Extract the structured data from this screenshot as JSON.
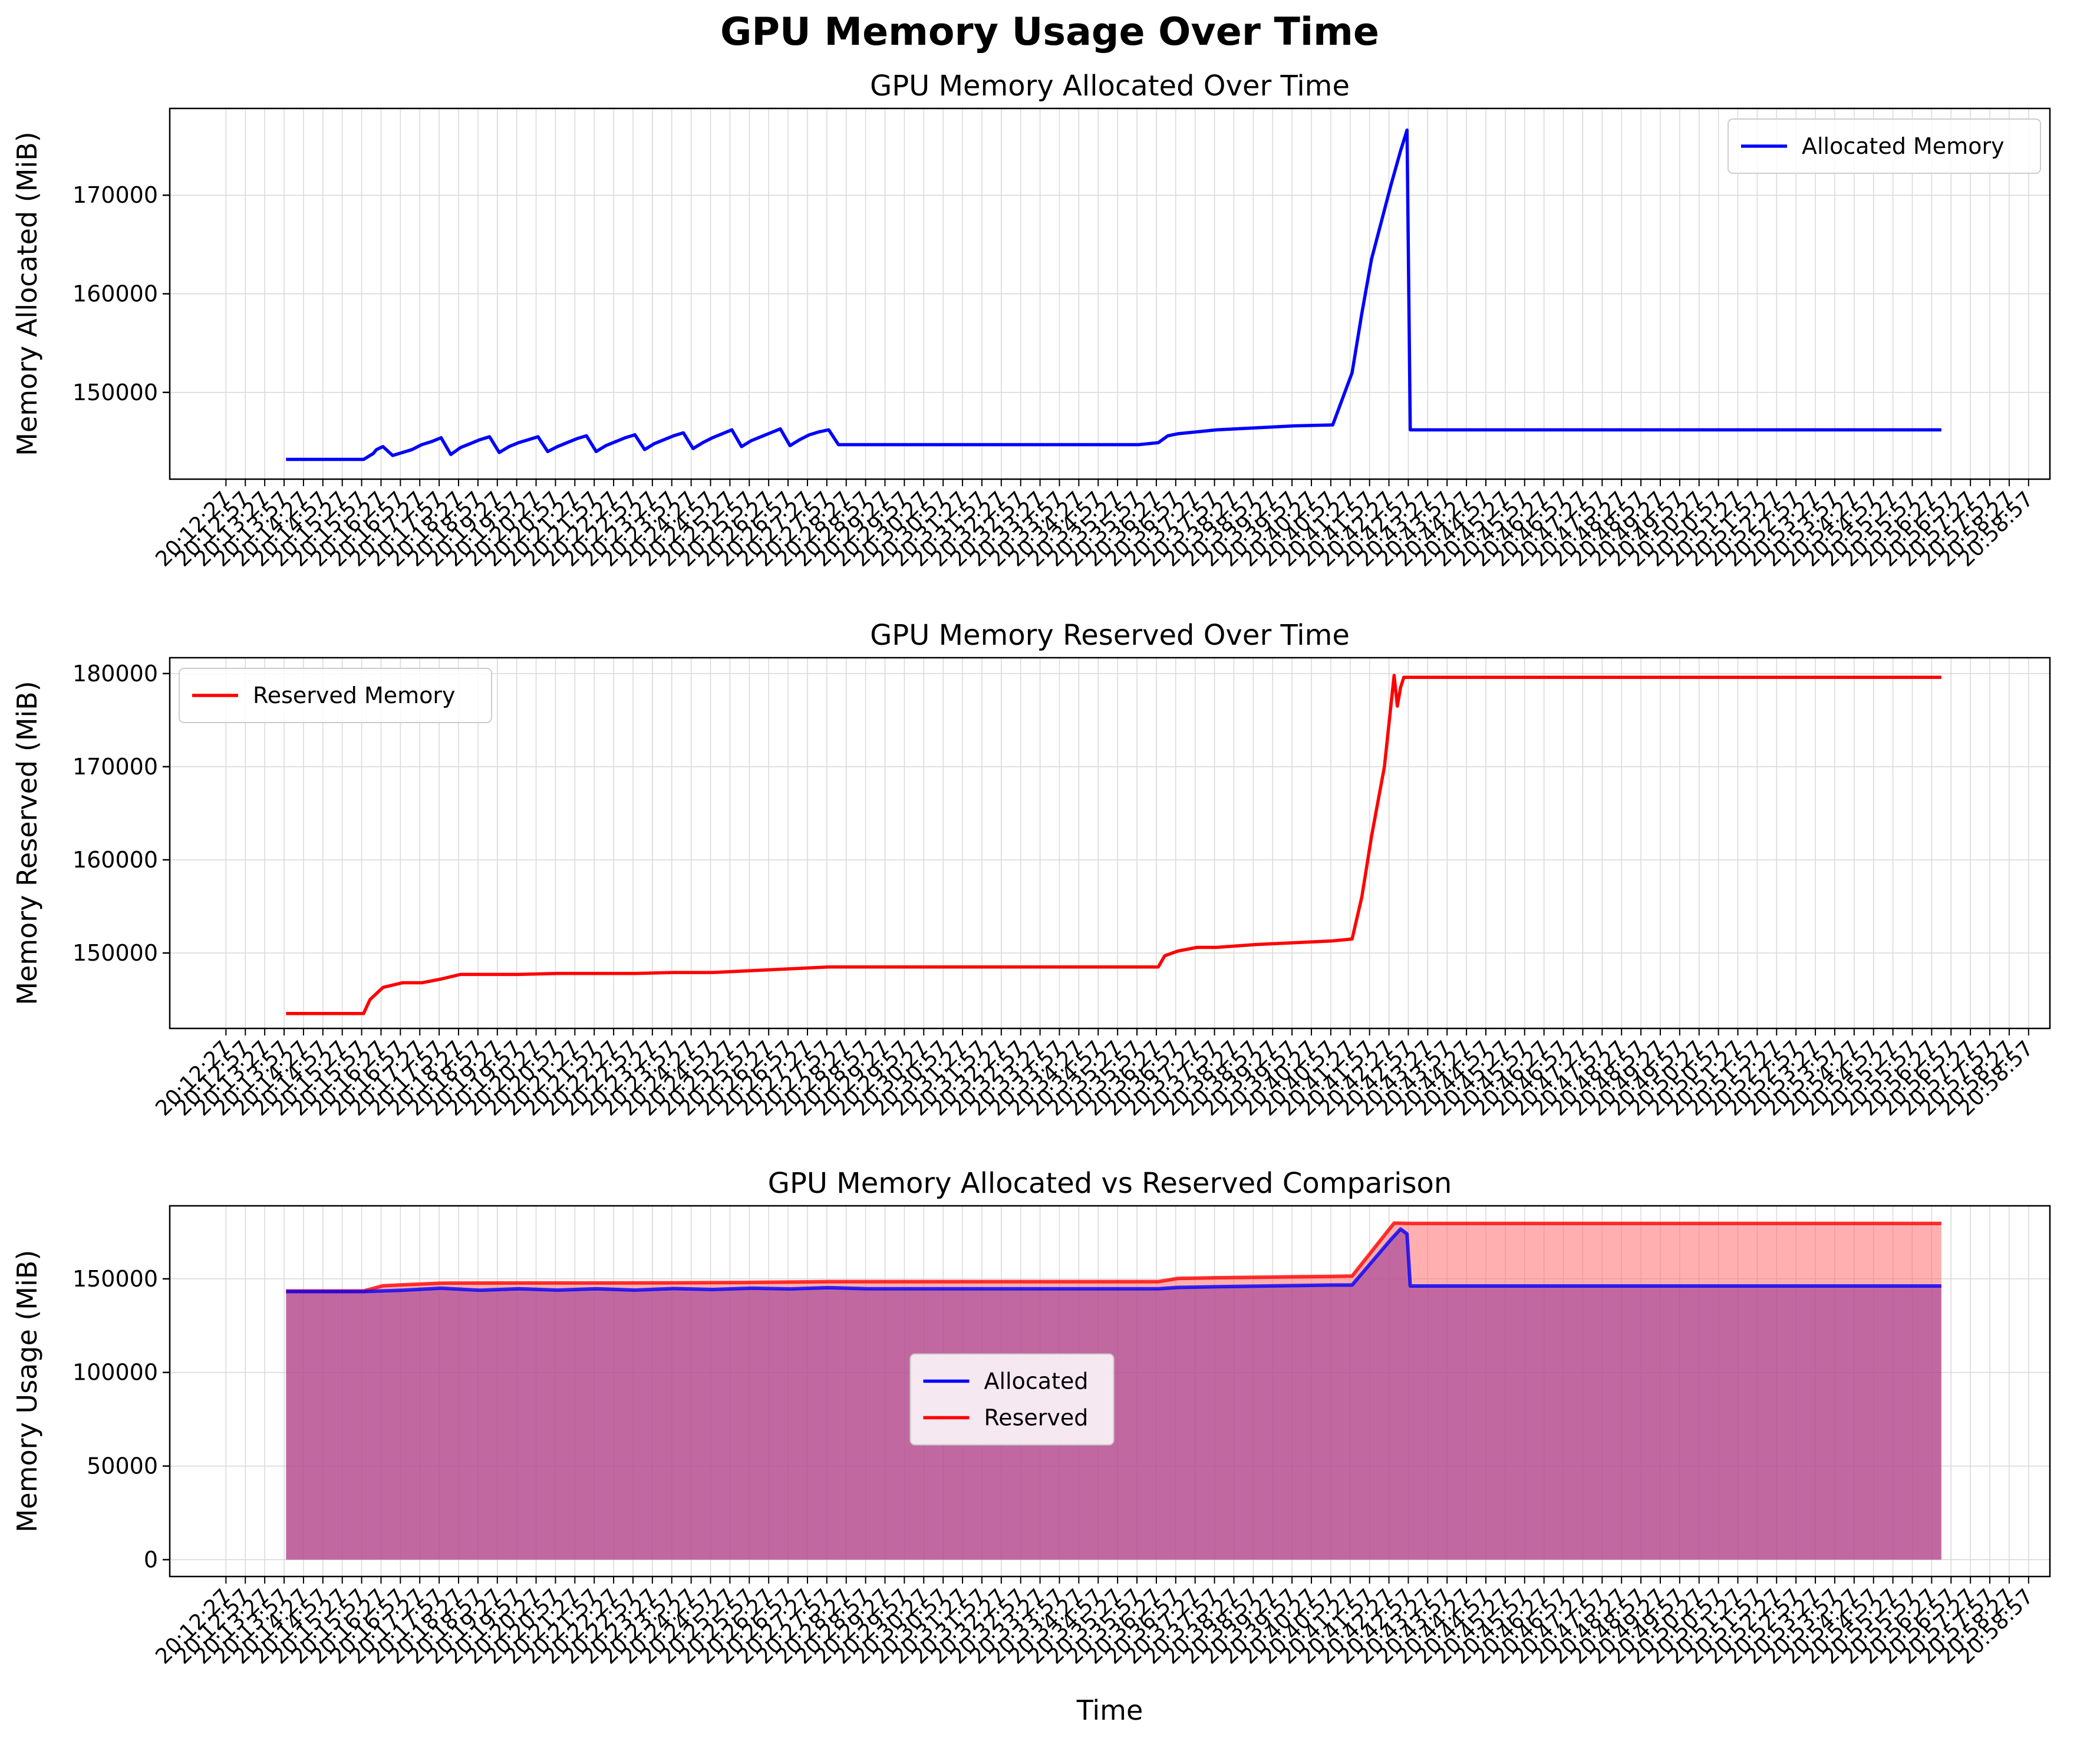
{
  "figure": {
    "suptitle": "GPU Memory Usage Over Time",
    "xlabel": "Time"
  },
  "colors": {
    "allocated": "#0000ff",
    "reserved": "#ff0000",
    "fill_allocated": "#9b3d9a",
    "fill_reserved": "#ff6e6e",
    "grid": "#d8d8d8"
  },
  "chart_data": [
    {
      "type": "line",
      "title": "GPU Memory Allocated Over Time",
      "xlabel": "",
      "ylabel": "Memory Allocated (MiB)",
      "ylim": [
        141200,
        178800
      ],
      "yticks": [
        150000,
        160000,
        170000
      ],
      "ytick_labels": [
        "150000",
        "160000",
        "170000"
      ],
      "grid": true,
      "legend_placement": "top-right",
      "series": [
        {
          "name": "Allocated Memory",
          "color": "#0000ff",
          "x": [
            "20:14:00",
            "20:14:30",
            "20:15:00",
            "20:15:30",
            "20:16:00",
            "20:16:15",
            "20:16:20",
            "20:16:30",
            "20:16:45",
            "20:17:00",
            "20:17:15",
            "20:17:30",
            "20:17:45",
            "20:18:00",
            "20:18:15",
            "20:18:30",
            "20:18:45",
            "20:19:00",
            "20:19:15",
            "20:19:30",
            "20:19:45",
            "20:20:00",
            "20:20:15",
            "20:20:30",
            "20:20:45",
            "20:21:00",
            "20:21:15",
            "20:21:30",
            "20:21:45",
            "20:22:00",
            "20:22:15",
            "20:22:30",
            "20:22:45",
            "20:23:00",
            "20:23:15",
            "20:23:30",
            "20:23:45",
            "20:24:00",
            "20:24:15",
            "20:24:30",
            "20:24:45",
            "20:25:00",
            "20:25:15",
            "20:25:30",
            "20:25:45",
            "20:26:00",
            "20:26:15",
            "20:26:30",
            "20:26:45",
            "20:27:00",
            "20:27:15",
            "20:27:30",
            "20:27:45",
            "20:28:00",
            "20:28:15",
            "20:28:30",
            "20:28:45",
            "20:29:00",
            "20:29:15",
            "20:29:30",
            "20:29:45",
            "20:30:00",
            "20:31:00",
            "20:32:00",
            "20:33:00",
            "20:34:00",
            "20:35:00",
            "20:36:00",
            "20:36:30",
            "20:36:45",
            "20:37:00",
            "20:38:00",
            "20:39:00",
            "20:40:00",
            "20:41:00",
            "20:41:30",
            "20:41:45",
            "20:42:00",
            "20:42:30",
            "20:42:45",
            "20:42:55",
            "20:43:00",
            "20:43:05",
            "20:45:00",
            "20:50:00",
            "20:55:00",
            "20:56:42"
          ],
          "y": [
            143200,
            143200,
            143200,
            143200,
            143200,
            143800,
            144200,
            144500,
            143600,
            143900,
            144200,
            144700,
            145000,
            145400,
            143700,
            144400,
            144800,
            145200,
            145500,
            143900,
            144500,
            144900,
            145200,
            145500,
            144000,
            144500,
            144900,
            145300,
            145600,
            144000,
            144600,
            145000,
            145400,
            145700,
            144200,
            144800,
            145200,
            145600,
            145900,
            144300,
            144900,
            145400,
            145800,
            146200,
            144500,
            145100,
            145500,
            145900,
            146300,
            144600,
            145200,
            145700,
            146000,
            146200,
            144700,
            144700,
            144700,
            144700,
            144700,
            144700,
            144700,
            144700,
            144700,
            144700,
            144700,
            144700,
            144700,
            144700,
            144900,
            145600,
            145800,
            146200,
            146400,
            146600,
            146700,
            152000,
            158000,
            163500,
            171000,
            174500,
            176600,
            146200,
            146200,
            146200,
            146200,
            146200,
            146200
          ]
        }
      ]
    },
    {
      "type": "line",
      "title": "GPU Memory Reserved Over Time",
      "xlabel": "",
      "ylabel": "Memory Reserved (MiB)",
      "ylim": [
        141900,
        181700
      ],
      "yticks": [
        150000,
        160000,
        170000,
        180000
      ],
      "ytick_labels": [
        "150000",
        "160000",
        "170000",
        "180000"
      ],
      "grid": true,
      "legend_placement": "top-left",
      "series": [
        {
          "name": "Reserved Memory",
          "color": "#ff0000",
          "x": [
            "20:14:00",
            "20:15:00",
            "20:16:00",
            "20:16:10",
            "20:16:30",
            "20:17:00",
            "20:17:30",
            "20:18:00",
            "20:18:30",
            "20:19:00",
            "20:20:00",
            "20:21:00",
            "20:22:00",
            "20:23:00",
            "20:24:00",
            "20:25:00",
            "20:26:00",
            "20:27:00",
            "20:28:00",
            "20:29:00",
            "20:30:00",
            "20:31:00",
            "20:32:00",
            "20:33:00",
            "20:34:00",
            "20:35:00",
            "20:36:00",
            "20:36:30",
            "20:36:40",
            "20:37:00",
            "20:37:30",
            "20:38:00",
            "20:39:00",
            "20:40:00",
            "20:41:00",
            "20:41:30",
            "20:41:45",
            "20:42:00",
            "20:42:20",
            "20:42:35",
            "20:42:40",
            "20:42:45",
            "20:42:50",
            "20:43:00",
            "20:45:00",
            "20:50:00",
            "20:55:00",
            "20:56:42"
          ],
          "y": [
            143500,
            143500,
            143500,
            145000,
            146300,
            146800,
            146800,
            147200,
            147700,
            147700,
            147700,
            147800,
            147800,
            147800,
            147900,
            147900,
            148100,
            148300,
            148500,
            148500,
            148500,
            148500,
            148500,
            148500,
            148500,
            148500,
            148500,
            148500,
            149700,
            150200,
            150600,
            150600,
            150900,
            151100,
            151300,
            151500,
            156000,
            162500,
            170000,
            179800,
            176500,
            178500,
            179600,
            179600,
            179600,
            179600,
            179600,
            179600
          ]
        }
      ]
    },
    {
      "type": "area",
      "title": "GPU Memory Allocated vs Reserved Comparison",
      "xlabel": "Time",
      "ylabel": "Memory Usage (MiB)",
      "ylim": [
        -9000,
        189000
      ],
      "yticks": [
        0,
        50000,
        100000,
        150000
      ],
      "ytick_labels": [
        "0",
        "50000",
        "100000",
        "150000"
      ],
      "grid": true,
      "legend_placement": "center",
      "series": [
        {
          "name": "Allocated",
          "color": "#0000ff",
          "x": [
            "20:14:00",
            "20:16:00",
            "20:17:00",
            "20:18:00",
            "20:19:00",
            "20:20:00",
            "20:21:00",
            "20:22:00",
            "20:23:00",
            "20:24:00",
            "20:25:00",
            "20:26:00",
            "20:27:00",
            "20:28:00",
            "20:29:00",
            "20:30:00",
            "20:34:00",
            "20:36:30",
            "20:37:00",
            "20:38:00",
            "20:40:00",
            "20:41:00",
            "20:41:30",
            "20:42:30",
            "20:42:45",
            "20:42:55",
            "20:43:00",
            "20:50:00",
            "20:56:42"
          ],
          "y": [
            143200,
            143200,
            143900,
            145000,
            143900,
            144700,
            144000,
            144700,
            144000,
            144800,
            144300,
            145000,
            144600,
            145300,
            144700,
            144700,
            144700,
            144700,
            145400,
            145800,
            146400,
            146700,
            146700,
            171000,
            176600,
            174000,
            146200,
            146200,
            146200
          ]
        },
        {
          "name": "Reserved",
          "color": "#ff0000",
          "x": [
            "20:14:00",
            "20:15:00",
            "20:16:00",
            "20:16:30",
            "20:17:00",
            "20:18:00",
            "20:20:00",
            "20:22:00",
            "20:24:00",
            "20:26:00",
            "20:28:00",
            "20:30:00",
            "20:34:00",
            "20:36:30",
            "20:37:00",
            "20:38:00",
            "20:40:00",
            "20:41:00",
            "20:41:30",
            "20:42:35",
            "20:43:00",
            "20:50:00",
            "20:56:42"
          ],
          "y": [
            143500,
            143500,
            143500,
            146300,
            146800,
            147700,
            147800,
            147800,
            147900,
            148100,
            148500,
            148500,
            148500,
            148500,
            150200,
            150600,
            151100,
            151300,
            151500,
            179800,
            179600,
            179600,
            179600
          ]
        }
      ]
    }
  ],
  "x_axis": {
    "range": [
      "20:11:00",
      "20:59:30"
    ],
    "tick_labels": [
      "20:12:27",
      "20:13:27",
      "20:14:27",
      "20:15:27",
      "20:16:27",
      "20:17:27",
      "20:18:27",
      "20:19:27",
      "20:20:27",
      "20:21:27",
      "20:22:27",
      "20:23:27",
      "20:24:27",
      "20:25:27",
      "20:26:27",
      "20:27:27",
      "20:28:27",
      "20:29:27",
      "20:30:27",
      "20:31:27",
      "20:32:27",
      "20:33:27",
      "20:34:27",
      "20:35:27",
      "20:36:27",
      "20:37:27",
      "20:38:27",
      "20:39:27",
      "20:40:27",
      "20:41:27",
      "20:42:27",
      "20:43:27",
      "20:44:27",
      "20:45:27",
      "20:46:27",
      "20:47:27",
      "20:48:27",
      "20:49:27",
      "20:50:27",
      "20:51:27",
      "20:52:27",
      "20:53:27",
      "20:54:27",
      "20:55:27",
      "20:56:27",
      "20:57:27",
      "20:58:27"
    ],
    "tick_labels_b": [
      "20:12:57",
      "20:13:57",
      "20:14:57",
      "20:15:57",
      "20:16:57",
      "20:17:57",
      "20:18:57",
      "20:19:57",
      "20:20:57",
      "20:21:57",
      "20:22:57",
      "20:23:57",
      "20:24:57",
      "20:25:57",
      "20:26:57",
      "20:27:57",
      "20:28:57",
      "20:29:57",
      "20:30:57",
      "20:31:57",
      "20:32:57",
      "20:33:57",
      "20:34:57",
      "20:35:57",
      "20:36:57",
      "20:37:57",
      "20:38:57",
      "20:39:57",
      "20:40:57",
      "20:41:57",
      "20:42:57",
      "20:43:57",
      "20:44:57",
      "20:45:57",
      "20:46:57",
      "20:47:57",
      "20:48:57",
      "20:49:57",
      "20:50:57",
      "20:51:57",
      "20:52:57",
      "20:53:57",
      "20:54:57",
      "20:55:57",
      "20:56:57",
      "20:57:57",
      "20:58:57"
    ]
  }
}
